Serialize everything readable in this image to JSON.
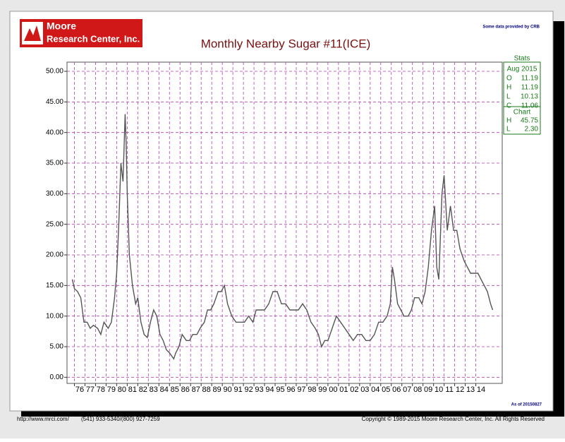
{
  "chart_data": {
    "type": "line",
    "title": "Monthly Nearby Sugar #11(ICE)",
    "logo": [
      "Moore",
      "Research Center, Inc."
    ],
    "source_note": "Some data provided by CRB",
    "as_of": "As of 20150827",
    "footer": {
      "url": "http://www.mrci.com/",
      "phone": "(541) 933-5340/(800) 927-7259",
      "copyright": "Copyright © 1989-2015 Moore Research Center, Inc. All Rights Reserved"
    },
    "stats": {
      "title": "Stats",
      "month": "Aug 2015",
      "rows": [
        [
          "O",
          "11.19"
        ],
        [
          "H",
          "11.19"
        ],
        [
          "L",
          "10.13"
        ],
        [
          "C",
          "11.06"
        ]
      ],
      "chart_title": "Chart",
      "chart_rows": [
        [
          "H",
          "45.75"
        ],
        [
          "L",
          "2.30"
        ]
      ]
    },
    "color": "#555555",
    "grid": true,
    "x": [
      1975.8,
      1976.0,
      1976.3,
      1976.6,
      1976.9,
      1977.2,
      1977.5,
      1977.8,
      1978.2,
      1978.5,
      1978.8,
      1979.2,
      1979.5,
      1979.8,
      1980.0,
      1980.2,
      1980.4,
      1980.6,
      1980.8,
      1980.9,
      1981.0,
      1981.2,
      1981.5,
      1981.8,
      1982.0,
      1982.3,
      1982.6,
      1982.9,
      1983.2,
      1983.5,
      1983.8,
      1984.1,
      1984.4,
      1984.7,
      1985.0,
      1985.4,
      1985.6,
      1985.9,
      1986.2,
      1986.6,
      1986.9,
      1987.2,
      1987.6,
      1987.9,
      1988.3,
      1988.6,
      1988.9,
      1989.2,
      1989.6,
      1989.9,
      1990.2,
      1990.5,
      1990.9,
      1991.3,
      1991.7,
      1992.1,
      1992.5,
      1992.9,
      1993.2,
      1993.6,
      1994.0,
      1994.4,
      1994.8,
      1995.2,
      1995.6,
      1996.0,
      1996.4,
      1996.8,
      1997.2,
      1997.6,
      1998.0,
      1998.4,
      1998.8,
      1999.1,
      1999.4,
      1999.7,
      2000.0,
      2000.4,
      2000.8,
      2001.2,
      2001.6,
      2002.0,
      2002.4,
      2002.8,
      2003.2,
      2003.6,
      2004.0,
      2004.4,
      2004.8,
      2005.2,
      2005.6,
      2005.9,
      2006.1,
      2006.3,
      2006.6,
      2006.9,
      2007.2,
      2007.6,
      2007.9,
      2008.2,
      2008.6,
      2008.9,
      2009.2,
      2009.5,
      2009.8,
      2010.1,
      2010.3,
      2010.5,
      2010.8,
      2011.0,
      2011.3,
      2011.6,
      2011.9,
      2012.2,
      2012.5,
      2012.9,
      2013.2,
      2013.5,
      2013.9,
      2014.2,
      2014.5,
      2014.8,
      2015.1,
      2015.4,
      2015.6
    ],
    "values": [
      16,
      14.5,
      14,
      13,
      9,
      9,
      8,
      8.5,
      8,
      7,
      9,
      8,
      9,
      13,
      17,
      25,
      35,
      32,
      43,
      38,
      30,
      20,
      15,
      12,
      13,
      9,
      7,
      6.5,
      9,
      11,
      10,
      7,
      6,
      4.5,
      4,
      3,
      4,
      5,
      7,
      6,
      6,
      7,
      7,
      8,
      9,
      11,
      11,
      12,
      14,
      14,
      15,
      12,
      10,
      9,
      9,
      9,
      10,
      9,
      11,
      11,
      11,
      12,
      14,
      14,
      12,
      12,
      11,
      11,
      11,
      12,
      11,
      9,
      8,
      7,
      5,
      6,
      6,
      8,
      10,
      9,
      8,
      7,
      6,
      7,
      7,
      6,
      6,
      7,
      9,
      9,
      10,
      12,
      18,
      16,
      12,
      11,
      10,
      10,
      11,
      13,
      13,
      12,
      14,
      18,
      24,
      28,
      18,
      16,
      30,
      33,
      24,
      28,
      24,
      24,
      21,
      19,
      18,
      17,
      17,
      17,
      16,
      15,
      14,
      12,
      11
    ],
    "xlim": [
      1975.3,
      2016.5
    ],
    "xticks": [
      {
        "value": 1976,
        "label": "76"
      },
      {
        "value": 1977,
        "label": "77"
      },
      {
        "value": 1978,
        "label": "78"
      },
      {
        "value": 1979,
        "label": "79"
      },
      {
        "value": 1980,
        "label": "80"
      },
      {
        "value": 1981,
        "label": "81"
      },
      {
        "value": 1982,
        "label": "82"
      },
      {
        "value": 1983,
        "label": "83"
      },
      {
        "value": 1984,
        "label": "84"
      },
      {
        "value": 1985,
        "label": "85"
      },
      {
        "value": 1986,
        "label": "86"
      },
      {
        "value": 1987,
        "label": "87"
      },
      {
        "value": 1988,
        "label": "88"
      },
      {
        "value": 1989,
        "label": "89"
      },
      {
        "value": 1990,
        "label": "90"
      },
      {
        "value": 1991,
        "label": "91"
      },
      {
        "value": 1992,
        "label": "92"
      },
      {
        "value": 1993,
        "label": "93"
      },
      {
        "value": 1994,
        "label": "94"
      },
      {
        "value": 1995,
        "label": "95"
      },
      {
        "value": 1996,
        "label": "96"
      },
      {
        "value": 1997,
        "label": "97"
      },
      {
        "value": 1998,
        "label": "98"
      },
      {
        "value": 1999,
        "label": "99"
      },
      {
        "value": 2000,
        "label": "00"
      },
      {
        "value": 2001,
        "label": "01"
      },
      {
        "value": 2002,
        "label": "02"
      },
      {
        "value": 2003,
        "label": "03"
      },
      {
        "value": 2004,
        "label": "04"
      },
      {
        "value": 2005,
        "label": "05"
      },
      {
        "value": 2006,
        "label": "06"
      },
      {
        "value": 2007,
        "label": "07"
      },
      {
        "value": 2008,
        "label": "08"
      },
      {
        "value": 2009,
        "label": "09"
      },
      {
        "value": 2010,
        "label": "10"
      },
      {
        "value": 2011,
        "label": "11"
      },
      {
        "value": 2012,
        "label": "12"
      },
      {
        "value": 2013,
        "label": "13"
      },
      {
        "value": 2014,
        "label": "14"
      }
    ],
    "ylim": [
      -1,
      51.5
    ],
    "yticks": [
      {
        "value": 0,
        "label": "0.00"
      },
      {
        "value": 5,
        "label": "5.00"
      },
      {
        "value": 10,
        "label": "10.00"
      },
      {
        "value": 15,
        "label": "15.00"
      },
      {
        "value": 20,
        "label": "20.00"
      },
      {
        "value": 25,
        "label": "25.00"
      },
      {
        "value": 30,
        "label": "30.00"
      },
      {
        "value": 35,
        "label": "35.00"
      },
      {
        "value": 40,
        "label": "40.00"
      },
      {
        "value": 45,
        "label": "45.00"
      },
      {
        "value": 50,
        "label": "50.00"
      }
    ]
  }
}
